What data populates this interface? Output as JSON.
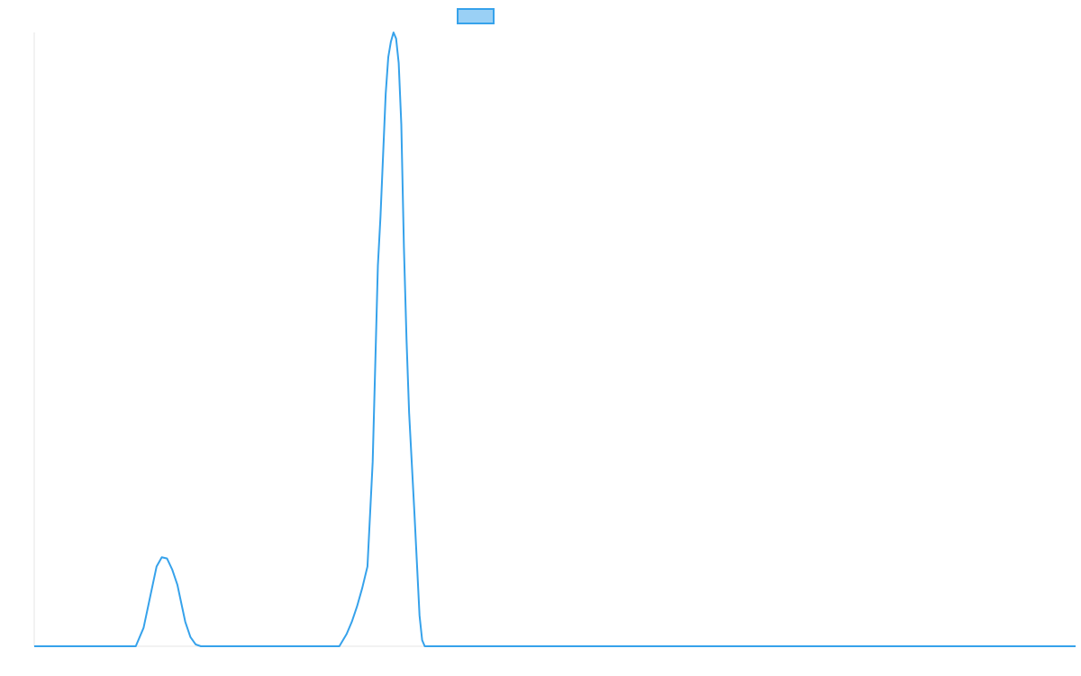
{
  "chart_data": {
    "type": "line",
    "title": "",
    "xlabel": "",
    "ylabel": "",
    "legend_position": "top-center",
    "grid": false,
    "xlim": [
      0,
      100
    ],
    "ylim": [
      0,
      100
    ],
    "series": [
      {
        "name": "",
        "color": "#36a2eb",
        "fill_color": "#9ad0f5",
        "x": [
          0,
          9.75,
          10.5,
          11.0,
          11.5,
          11.75,
          12.25,
          12.75,
          13.25,
          13.75,
          14.25,
          14.5,
          15.0,
          15.5,
          16.0,
          16.25,
          16.75,
          17.0,
          20,
          29.3,
          30.0,
          30.5,
          31.0,
          31.5,
          32.0,
          32.5,
          33.0,
          33.25,
          33.5,
          33.75,
          34.0,
          34.25,
          34.5,
          34.75,
          35.0,
          35.25,
          35.5,
          35.75,
          36.0,
          36.5,
          37.0,
          37.25,
          37.5,
          38.0,
          40,
          100
        ],
        "y": [
          0,
          0,
          3,
          7,
          11,
          13,
          14.5,
          14.3,
          12.5,
          10,
          6,
          4,
          1.5,
          0.3,
          0,
          0,
          0,
          0,
          0,
          0,
          2,
          4,
          6.5,
          9.5,
          13,
          30,
          62,
          70,
          80,
          90,
          96,
          98.5,
          100,
          99,
          95,
          85,
          65,
          50,
          38,
          22,
          5,
          1,
          0,
          0,
          0,
          0
        ]
      }
    ]
  }
}
